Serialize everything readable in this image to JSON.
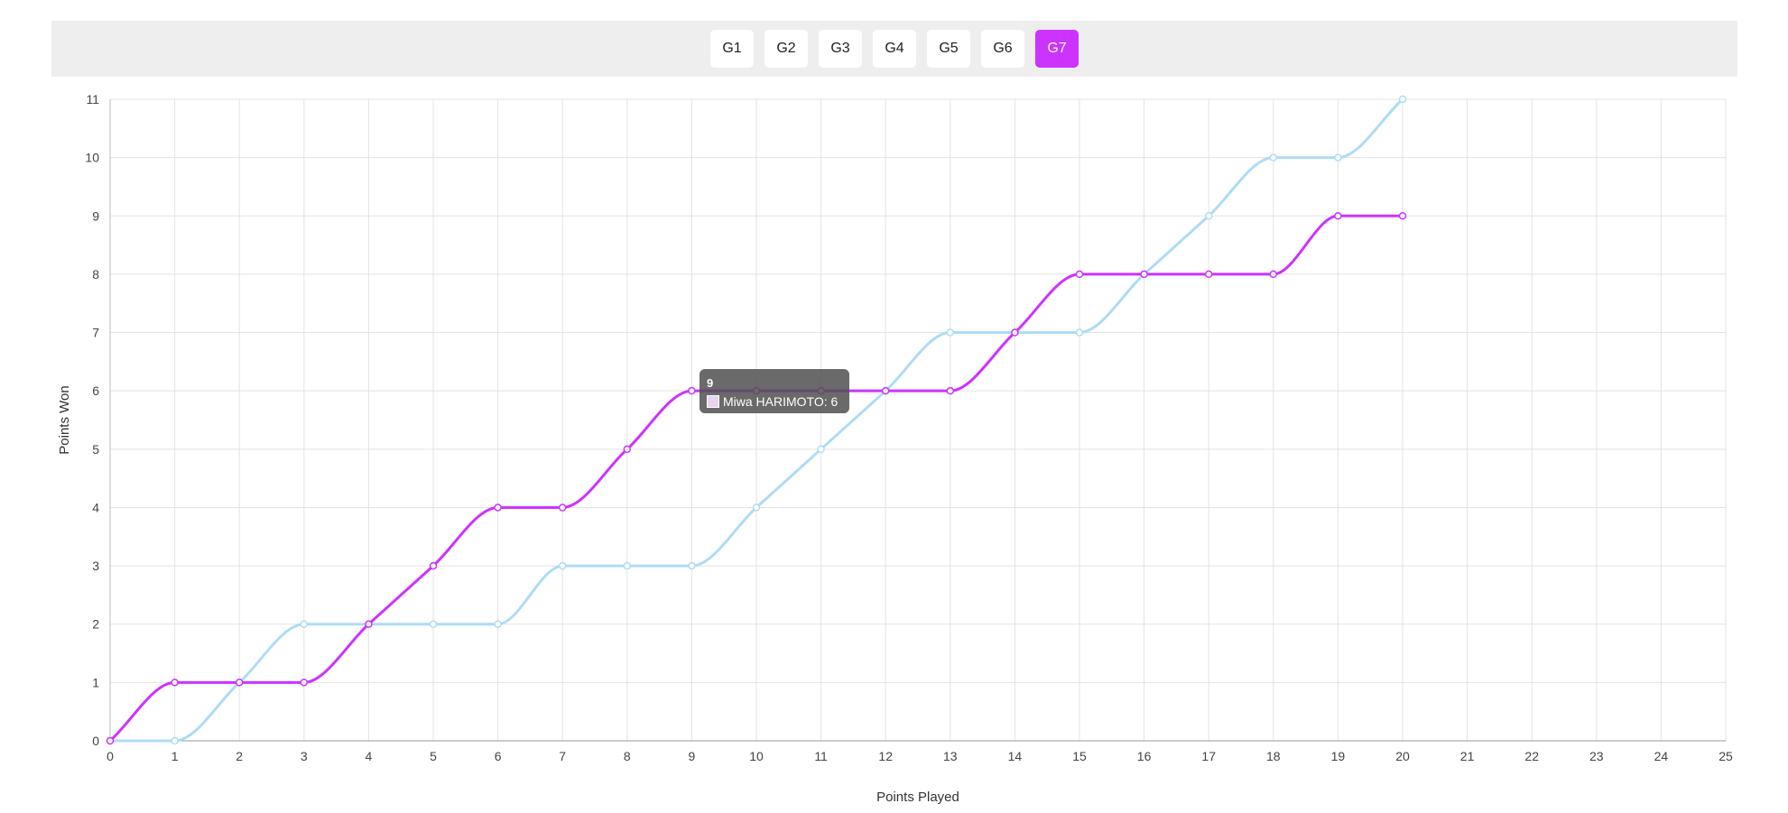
{
  "game_tabs": [
    {
      "label": "G1",
      "active": false
    },
    {
      "label": "G2",
      "active": false
    },
    {
      "label": "G3",
      "active": false
    },
    {
      "label": "G4",
      "active": false
    },
    {
      "label": "G5",
      "active": false
    },
    {
      "label": "G6",
      "active": false
    },
    {
      "label": "G7",
      "active": true
    }
  ],
  "colors": {
    "accent": "#cc33ff",
    "series_1": "#cc33ff",
    "series_2": "#aedcf5",
    "grid": "#e3e3e3"
  },
  "tooltip": {
    "title": "9",
    "series_name": "Miwa HARIMOTO",
    "value": "6",
    "text": "Miwa HARIMOTO: 6"
  },
  "chart_data": {
    "type": "line",
    "xlabel": "Points Played",
    "ylabel": "Points Won",
    "xlim": [
      0,
      25
    ],
    "ylim": [
      0,
      11
    ],
    "x_ticks": [
      0,
      1,
      2,
      3,
      4,
      5,
      6,
      7,
      8,
      9,
      10,
      11,
      12,
      13,
      14,
      15,
      16,
      17,
      18,
      19,
      20,
      21,
      22,
      23,
      24,
      25
    ],
    "y_ticks": [
      0,
      1,
      2,
      3,
      4,
      5,
      6,
      7,
      8,
      9,
      10,
      11
    ],
    "grid": true,
    "x": [
      0,
      1,
      2,
      3,
      4,
      5,
      6,
      7,
      8,
      9,
      10,
      11,
      12,
      13,
      14,
      15,
      16,
      17,
      18,
      19,
      20
    ],
    "series": [
      {
        "name": "Miwa HARIMOTO",
        "color": "#cc33ff",
        "values": [
          0,
          1,
          1,
          1,
          2,
          3,
          4,
          4,
          5,
          6,
          6,
          6,
          6,
          6,
          7,
          8,
          8,
          8,
          8,
          9,
          9
        ]
      },
      {
        "color": "#aedcf5",
        "values": [
          0,
          0,
          1,
          2,
          2,
          2,
          2,
          3,
          3,
          3,
          4,
          5,
          6,
          7,
          7,
          7,
          8,
          9,
          10,
          10,
          11
        ]
      }
    ]
  }
}
